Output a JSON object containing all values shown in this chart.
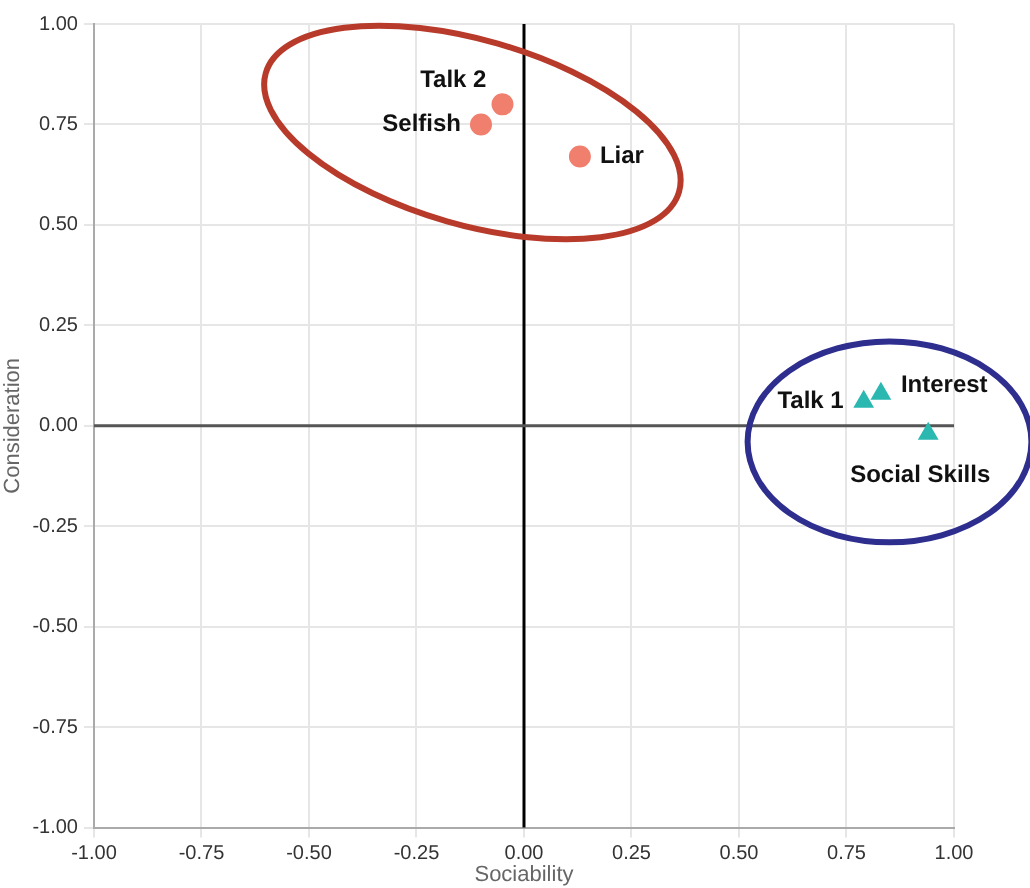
{
  "chart_data": {
    "type": "scatter",
    "xlabel": "Sociability",
    "ylabel": "Consideration",
    "series": [
      {
        "color": "#f07f6e",
        "marker": "circle",
        "x": [
          -0.05,
          -0.1,
          0.13
        ],
        "values": [
          0.8,
          0.75,
          0.67
        ]
      },
      {
        "color": "#2bb8b0",
        "marker": "triangle",
        "x": [
          0.79,
          0.83,
          0.94
        ],
        "values": [
          0.06,
          0.08,
          -0.02
        ]
      }
    ],
    "annotations": [
      {
        "text": "Talk 2",
        "x": -0.05,
        "y": 0.8
      },
      {
        "text": "Selfish",
        "x": -0.1,
        "y": 0.75
      },
      {
        "text": "Liar",
        "x": 0.13,
        "y": 0.67
      },
      {
        "text": "Talk 1",
        "x": 0.79,
        "y": 0.06
      },
      {
        "text": "Interest",
        "x": 0.83,
        "y": 0.08
      },
      {
        "text": "Social Skills",
        "x": 0.94,
        "y": -0.02
      }
    ],
    "ref_lines": [
      {
        "axis": "x",
        "value": 0,
        "color": "#000000"
      },
      {
        "axis": "y",
        "value": 0,
        "color": "#555555"
      }
    ],
    "xlim": [
      -1,
      1
    ],
    "ylim": [
      -1,
      1
    ],
    "xticks": [
      {
        "value": -1,
        "label": "-1.00"
      },
      {
        "value": -0.75,
        "label": "-0.75"
      },
      {
        "value": -0.5,
        "label": "-0.50"
      },
      {
        "value": -0.25,
        "label": "-0.25"
      },
      {
        "value": 0,
        "label": "0.00"
      },
      {
        "value": 0.25,
        "label": "0.25"
      },
      {
        "value": 0.5,
        "label": "0.50"
      },
      {
        "value": 0.75,
        "label": "0.75"
      },
      {
        "value": 1,
        "label": "1.00"
      }
    ],
    "yticks": [
      {
        "value": -1,
        "label": "-1.00"
      },
      {
        "value": -0.75,
        "label": "-0.75"
      },
      {
        "value": -0.5,
        "label": "-0.50"
      },
      {
        "value": -0.25,
        "label": "-0.25"
      },
      {
        "value": 0,
        "label": "0.00"
      },
      {
        "value": 0.25,
        "label": "0.25"
      },
      {
        "value": 0.5,
        "label": "0.50"
      },
      {
        "value": 0.75,
        "label": "0.75"
      },
      {
        "value": 1,
        "label": "1.00"
      }
    ],
    "grid": true,
    "legend": false
  }
}
